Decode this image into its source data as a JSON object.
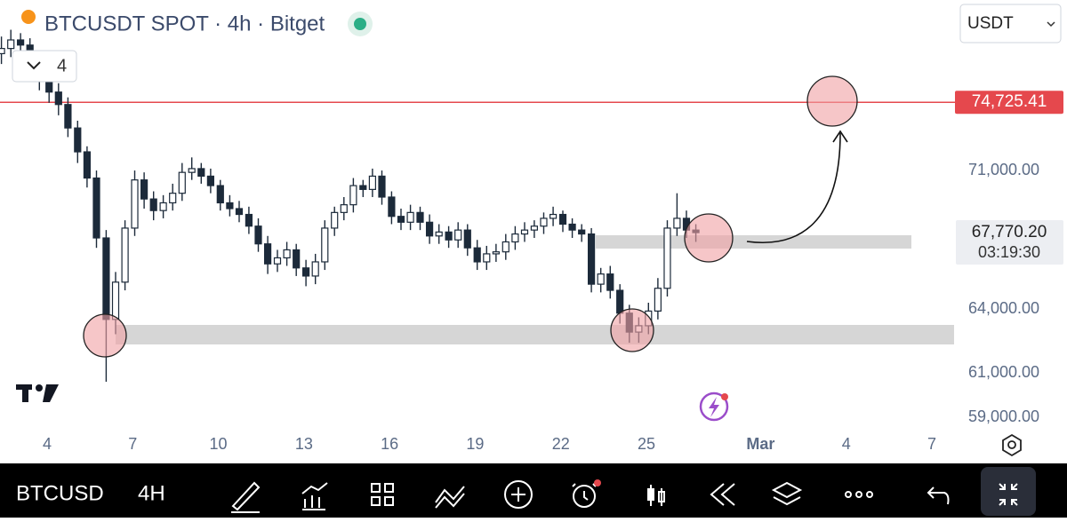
{
  "header": {
    "title": "BTCUSDT SPOT · 4h · Bitget",
    "indicators_count": 4,
    "currency": "USDT"
  },
  "chart": {
    "type": "candlestick",
    "log_scale": true,
    "ylim": [
      58230,
      80680
    ],
    "xlim": [
      2.35,
      35.84
    ],
    "up_color": "#ffffff",
    "down_color": "#1c2a3a",
    "x": [
      2.4,
      2.73,
      3.07,
      3.4,
      3.73,
      4.07,
      4.4,
      4.73,
      5.07,
      5.4,
      5.73,
      6.07,
      6.4,
      6.73,
      7.07,
      7.4,
      7.73,
      8.07,
      8.4,
      8.73,
      9.07,
      9.4,
      9.73,
      10.07,
      10.4,
      10.73,
      11.07,
      11.4,
      11.73,
      12.07,
      12.4,
      12.73,
      13.07,
      13.4,
      13.73,
      14.07,
      14.4,
      14.73,
      15.07,
      15.4,
      15.73,
      16.07,
      16.4,
      16.73,
      17.07,
      17.4,
      17.73,
      18.07,
      18.4,
      18.73,
      19.07,
      19.4,
      19.73,
      20.07,
      20.4,
      20.73,
      21.07,
      21.4,
      21.73,
      22.07,
      22.4,
      22.73,
      23.07,
      23.4,
      23.73,
      24.07,
      24.4,
      24.73,
      25.07,
      25.4,
      25.73,
      26.07,
      26.4,
      26.73
    ],
    "open": [
      77500,
      77800,
      78300,
      78000,
      77200,
      76000,
      75300,
      74600,
      73300,
      72000,
      70600,
      67500,
      63500,
      65300,
      68000,
      70500,
      69500,
      68900,
      69300,
      69800,
      70900,
      71100,
      70700,
      70200,
      69300,
      69000,
      68700,
      68100,
      67200,
      66200,
      66500,
      66900,
      66000,
      65600,
      66300,
      68000,
      68800,
      69200,
      70200,
      70000,
      70700,
      69600,
      68600,
      68300,
      68800,
      68300,
      67600,
      67800,
      67400,
      67900,
      67000,
      66300,
      66700,
      66800,
      67300,
      67700,
      67900,
      68100,
      68500,
      68700,
      68200,
      67900,
      67700,
      65200,
      65700,
      64900,
      63800,
      62900,
      63200,
      63900,
      65000,
      68000,
      68500,
      67900
    ],
    "high": [
      78500,
      78900,
      78700,
      78400,
      77600,
      76500,
      75800,
      75000,
      73700,
      72300,
      71000,
      67900,
      65800,
      68400,
      71000,
      70900,
      69900,
      69700,
      70300,
      71400,
      71700,
      71400,
      71100,
      70500,
      69700,
      69400,
      69100,
      68500,
      67600,
      66900,
      67300,
      67200,
      66400,
      66700,
      68400,
      69100,
      69600,
      70600,
      70500,
      71100,
      71000,
      69900,
      69000,
      69200,
      69100,
      68700,
      68200,
      68100,
      68300,
      68200,
      67400,
      67100,
      67200,
      67700,
      68100,
      68300,
      68400,
      68800,
      69100,
      68900,
      68500,
      68200,
      68000,
      66000,
      66100,
      65200,
      64200,
      63600,
      64300,
      65500,
      68400,
      69800,
      68900,
      68200
    ],
    "low": [
      76900,
      77300,
      77400,
      76700,
      75400,
      74700,
      74000,
      72800,
      71400,
      70100,
      67000,
      60600,
      62800,
      64900,
      67600,
      69000,
      68400,
      68500,
      68900,
      69400,
      70500,
      70300,
      69800,
      68900,
      68600,
      68300,
      67700,
      66800,
      65700,
      65800,
      66100,
      65600,
      65100,
      65200,
      65900,
      67600,
      68400,
      68800,
      69600,
      69600,
      69200,
      68200,
      67900,
      67900,
      67900,
      67200,
      67200,
      67000,
      67000,
      66600,
      65900,
      65900,
      66300,
      66400,
      66900,
      67300,
      67500,
      67700,
      68100,
      67800,
      67500,
      67300,
      64800,
      64800,
      64500,
      63300,
      62400,
      62400,
      62800,
      63500,
      64600,
      67600,
      67500,
      67300
    ],
    "close": [
      77800,
      78300,
      78000,
      77200,
      76000,
      75300,
      74600,
      73300,
      72000,
      70600,
      67500,
      63500,
      65300,
      68000,
      70500,
      69500,
      68900,
      69300,
      69800,
      70900,
      71100,
      70700,
      70200,
      69300,
      69000,
      68700,
      68100,
      67200,
      66200,
      66500,
      66900,
      66000,
      65600,
      66300,
      68000,
      68800,
      69200,
      70200,
      70000,
      70700,
      69600,
      68600,
      68300,
      68800,
      68300,
      67600,
      67800,
      67400,
      67900,
      67000,
      66300,
      66700,
      66800,
      67300,
      67700,
      67900,
      68100,
      68500,
      68700,
      68200,
      67900,
      67700,
      65200,
      65700,
      64900,
      63800,
      62900,
      63200,
      63900,
      65000,
      68000,
      68500,
      67900,
      67770
    ],
    "yticks": [
      {
        "value": 71000,
        "label": "71,000.00"
      },
      {
        "value": 64000,
        "label": "64,000.00"
      },
      {
        "value": 61000,
        "label": "61,000.00"
      },
      {
        "value": 59000,
        "label": "59,000.00"
      }
    ],
    "xticks": [
      4,
      7,
      10,
      13,
      16,
      19,
      22,
      25,
      {
        "value": 29,
        "label": "Mar"
      },
      {
        "value": 32,
        "label": "4"
      },
      {
        "value": 35,
        "label": "7"
      }
    ],
    "level": {
      "value": 74725.41,
      "label": "74,725.41",
      "color": "#e5484d"
    },
    "last_price": {
      "value": 67770.2,
      "label": "67,770.20"
    },
    "countdown": "03:19:30"
  },
  "toolbar": {
    "symbol": "BTCUSD",
    "interval": "4H"
  }
}
